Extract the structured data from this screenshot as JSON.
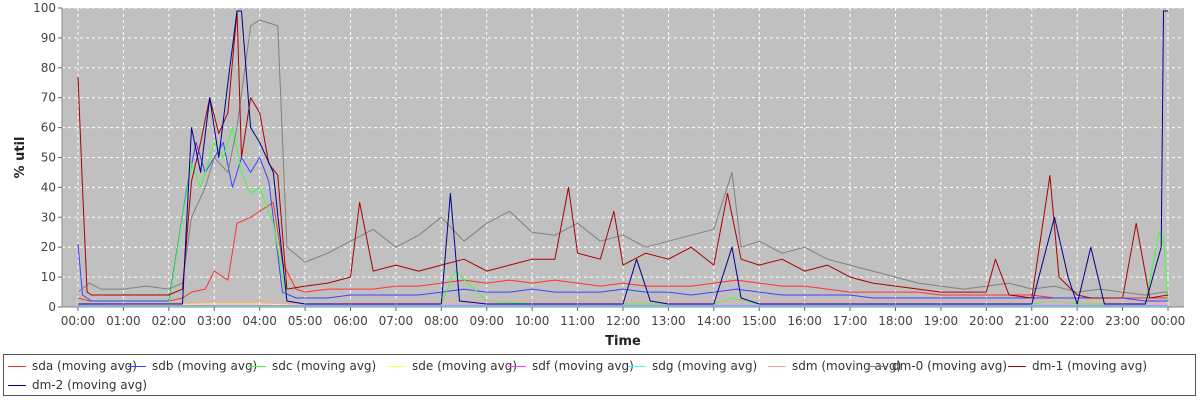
{
  "chart_data": {
    "type": "line",
    "xlabel": "Time",
    "ylabel": "% util",
    "ylim": [
      0,
      100
    ],
    "x_ticks": [
      "00:00",
      "01:00",
      "02:00",
      "03:00",
      "04:00",
      "05:00",
      "06:00",
      "07:00",
      "08:00",
      "09:00",
      "10:00",
      "11:00",
      "12:00",
      "13:00",
      "14:00",
      "15:00",
      "16:00",
      "17:00",
      "18:00",
      "19:00",
      "20:00",
      "21:00",
      "22:00",
      "23:00",
      "00:00"
    ],
    "y_ticks": [
      0,
      10,
      20,
      30,
      40,
      50,
      60,
      70,
      80,
      90,
      100
    ],
    "x_hours_domain": [
      0,
      24
    ],
    "grid": true,
    "legend_position": "bottom",
    "plot_background": "#c0c0c0",
    "series": [
      {
        "name": "sda (moving avg)",
        "color": "#ff3030",
        "x": [
          0,
          0.25,
          0.5,
          1,
          1.5,
          2,
          2.3,
          2.5,
          2.8,
          3,
          3.3,
          3.5,
          3.8,
          4,
          4.3,
          4.5,
          4.8,
          5,
          5.5,
          6,
          6.5,
          7,
          7.5,
          8,
          8.5,
          9,
          9.5,
          10,
          10.5,
          11,
          11.5,
          12,
          12.5,
          13,
          13.5,
          14,
          14.5,
          15,
          15.5,
          16,
          16.5,
          17,
          17.5,
          18,
          18.5,
          19,
          19.5,
          20,
          20.5,
          21,
          21.5,
          22,
          22.5,
          23,
          23.5,
          23.9,
          24
        ],
        "y": [
          3,
          2,
          2,
          2,
          2,
          2,
          3,
          5,
          6,
          12,
          9,
          28,
          30,
          32,
          35,
          15,
          6,
          5,
          6,
          6,
          6,
          7,
          7,
          8,
          9,
          8,
          9,
          8,
          9,
          8,
          7,
          8,
          7,
          7,
          7,
          8,
          9,
          8,
          7,
          7,
          6,
          5,
          5,
          5,
          5,
          4,
          4,
          4,
          4,
          4,
          3,
          3,
          3,
          3,
          3,
          3,
          3
        ]
      },
      {
        "name": "sdb (moving avg)",
        "color": "#4040ff",
        "x": [
          0,
          0.1,
          0.3,
          0.5,
          1,
          1.5,
          2,
          2.4,
          2.6,
          2.8,
          3,
          3.2,
          3.4,
          3.6,
          3.8,
          4,
          4.2,
          4.5,
          4.8,
          5,
          5.5,
          6,
          6.5,
          7,
          7.5,
          8,
          8.5,
          9,
          9.5,
          10,
          10.5,
          11,
          11.5,
          12,
          12.5,
          13,
          13.5,
          14,
          14.5,
          15,
          15.5,
          16,
          16.5,
          17,
          17.5,
          18,
          18.5,
          19,
          19.5,
          20,
          20.5,
          21,
          21.5,
          22,
          22.5,
          23,
          23.5,
          23.9,
          24
        ],
        "y": [
          21,
          4,
          2,
          2,
          2,
          2,
          2,
          40,
          55,
          45,
          50,
          55,
          40,
          50,
          45,
          50,
          42,
          5,
          3,
          3,
          3,
          4,
          4,
          4,
          4,
          5,
          6,
          5,
          5,
          6,
          5,
          5,
          5,
          6,
          5,
          5,
          4,
          5,
          6,
          5,
          4,
          4,
          4,
          4,
          3,
          3,
          3,
          3,
          3,
          3,
          3,
          3,
          3,
          3,
          3,
          3,
          2,
          2,
          2
        ]
      },
      {
        "name": "sdc (moving avg)",
        "color": "#40ff40",
        "x": [
          0,
          0.5,
          1,
          1.5,
          2,
          2.3,
          2.5,
          2.7,
          3,
          3.2,
          3.4,
          3.6,
          3.8,
          4,
          4.3,
          4.6,
          5,
          6,
          7,
          8,
          8.3,
          9,
          10,
          11,
          12,
          13,
          14,
          14.4,
          15,
          16,
          17,
          18,
          19,
          20,
          21,
          21.5,
          22,
          23,
          23.5,
          23.8,
          23.9,
          24
        ],
        "y": [
          1,
          1,
          1,
          1,
          1,
          30,
          48,
          40,
          55,
          50,
          60,
          45,
          38,
          40,
          28,
          2,
          1,
          1,
          1,
          1,
          12,
          2,
          1,
          1,
          1,
          1,
          1,
          3,
          1,
          1,
          1,
          1,
          1,
          1,
          1,
          2,
          1,
          1,
          1,
          25,
          23,
          2
        ]
      },
      {
        "name": "sde (moving avg)",
        "color": "#ffff40",
        "x": [
          0,
          3,
          4,
          5,
          8,
          12,
          16,
          20,
          24
        ],
        "y": [
          0.5,
          1,
          1,
          0.5,
          0.5,
          0.5,
          0.5,
          0.5,
          0.5
        ]
      },
      {
        "name": "sdf (moving avg)",
        "color": "#ff40ff",
        "x": [
          0,
          6,
          12,
          18,
          24
        ],
        "y": [
          0.5,
          0.5,
          0.5,
          0.5,
          0.5
        ]
      },
      {
        "name": "sdg (moving avg)",
        "color": "#40ffff",
        "x": [
          0,
          6,
          12,
          18,
          24
        ],
        "y": [
          0.3,
          0.3,
          0.3,
          0.3,
          0.3
        ]
      },
      {
        "name": "sdm (moving avg)",
        "color": "#ffa0a0",
        "x": [
          0,
          2,
          3,
          4,
          5,
          8,
          12,
          16,
          20,
          24
        ],
        "y": [
          1,
          1,
          2,
          2,
          1,
          2,
          2,
          2,
          2,
          1
        ]
      },
      {
        "name": "dm-0 (moving avg)",
        "color": "#808080",
        "x": [
          0,
          0.25,
          0.5,
          1,
          1.5,
          2,
          2.3,
          2.5,
          2.8,
          3,
          3.3,
          3.5,
          3.8,
          4,
          4.2,
          4.4,
          4.6,
          5,
          5.5,
          6,
          6.5,
          7,
          7.5,
          8,
          8.5,
          9,
          9.5,
          10,
          10.5,
          11,
          11.5,
          12,
          12.5,
          13,
          13.5,
          14,
          14.4,
          14.6,
          15,
          15.5,
          16,
          16.5,
          17,
          17.5,
          18,
          18.5,
          19,
          19.5,
          20,
          20.5,
          21,
          21.5,
          22,
          22.5,
          23,
          23.5,
          23.9,
          24
        ],
        "y": [
          5,
          8,
          6,
          6,
          7,
          6,
          8,
          30,
          40,
          50,
          45,
          60,
          94,
          96,
          95,
          94,
          20,
          15,
          18,
          22,
          26,
          20,
          24,
          30,
          22,
          28,
          32,
          25,
          24,
          28,
          22,
          24,
          20,
          22,
          24,
          26,
          45,
          20,
          22,
          18,
          20,
          16,
          14,
          12,
          10,
          8,
          7,
          6,
          7,
          8,
          6,
          7,
          5,
          6,
          5,
          4,
          5,
          5
        ]
      },
      {
        "name": "dm-1 (moving avg)",
        "color": "#aa0000",
        "x": [
          0,
          0.1,
          0.2,
          0.3,
          0.5,
          1,
          1.5,
          2,
          2.3,
          2.5,
          2.7,
          2.9,
          3.1,
          3.3,
          3.5,
          3.6,
          3.8,
          4,
          4.2,
          4.4,
          4.6,
          5,
          5.5,
          6,
          6.2,
          6.5,
          7,
          7.5,
          8,
          8.5,
          9,
          9.5,
          10,
          10.5,
          10.8,
          11,
          11.5,
          11.8,
          12,
          12.5,
          13,
          13.5,
          14,
          14.3,
          14.6,
          15,
          15.5,
          16,
          16.5,
          17,
          17.5,
          18,
          18.5,
          19,
          19.5,
          20,
          20.2,
          20.5,
          21,
          21.4,
          21.6,
          22,
          22.3,
          22.6,
          23,
          23.3,
          23.6,
          24
        ],
        "y": [
          77,
          40,
          5,
          4,
          4,
          4,
          4,
          4,
          6,
          42,
          55,
          70,
          58,
          65,
          99,
          50,
          70,
          65,
          48,
          44,
          6,
          7,
          8,
          10,
          35,
          12,
          14,
          12,
          14,
          16,
          12,
          14,
          16,
          16,
          40,
          18,
          16,
          32,
          14,
          18,
          16,
          20,
          14,
          38,
          16,
          14,
          16,
          12,
          14,
          10,
          8,
          7,
          6,
          5,
          5,
          5,
          16,
          4,
          3,
          44,
          10,
          4,
          3,
          3,
          3,
          28,
          3,
          4
        ]
      },
      {
        "name": "dm-2 (moving avg)",
        "color": "#000090",
        "x": [
          0,
          0.5,
          1,
          1.5,
          2,
          2.3,
          2.5,
          2.7,
          2.9,
          3.1,
          3.3,
          3.5,
          3.6,
          3.8,
          4,
          4.3,
          4.6,
          5,
          5.5,
          6,
          6.5,
          7,
          7.5,
          8,
          8.2,
          8.4,
          9,
          10,
          11,
          11.5,
          12,
          12.3,
          12.6,
          13,
          14,
          14.4,
          14.6,
          15,
          16,
          17,
          18,
          19,
          20,
          21,
          21.5,
          21.8,
          22,
          22.3,
          22.6,
          23,
          23.5,
          23.85,
          23.9,
          24
        ],
        "y": [
          1,
          1,
          1,
          1,
          1,
          1,
          60,
          45,
          70,
          50,
          75,
          99,
          99,
          60,
          55,
          45,
          2,
          1,
          1,
          1,
          1,
          1,
          1,
          1,
          38,
          2,
          1,
          1,
          1,
          1,
          1,
          16,
          2,
          1,
          1,
          20,
          3,
          1,
          1,
          1,
          1,
          1,
          1,
          1,
          30,
          10,
          1,
          20,
          1,
          1,
          1,
          20,
          99,
          99
        ]
      }
    ]
  }
}
